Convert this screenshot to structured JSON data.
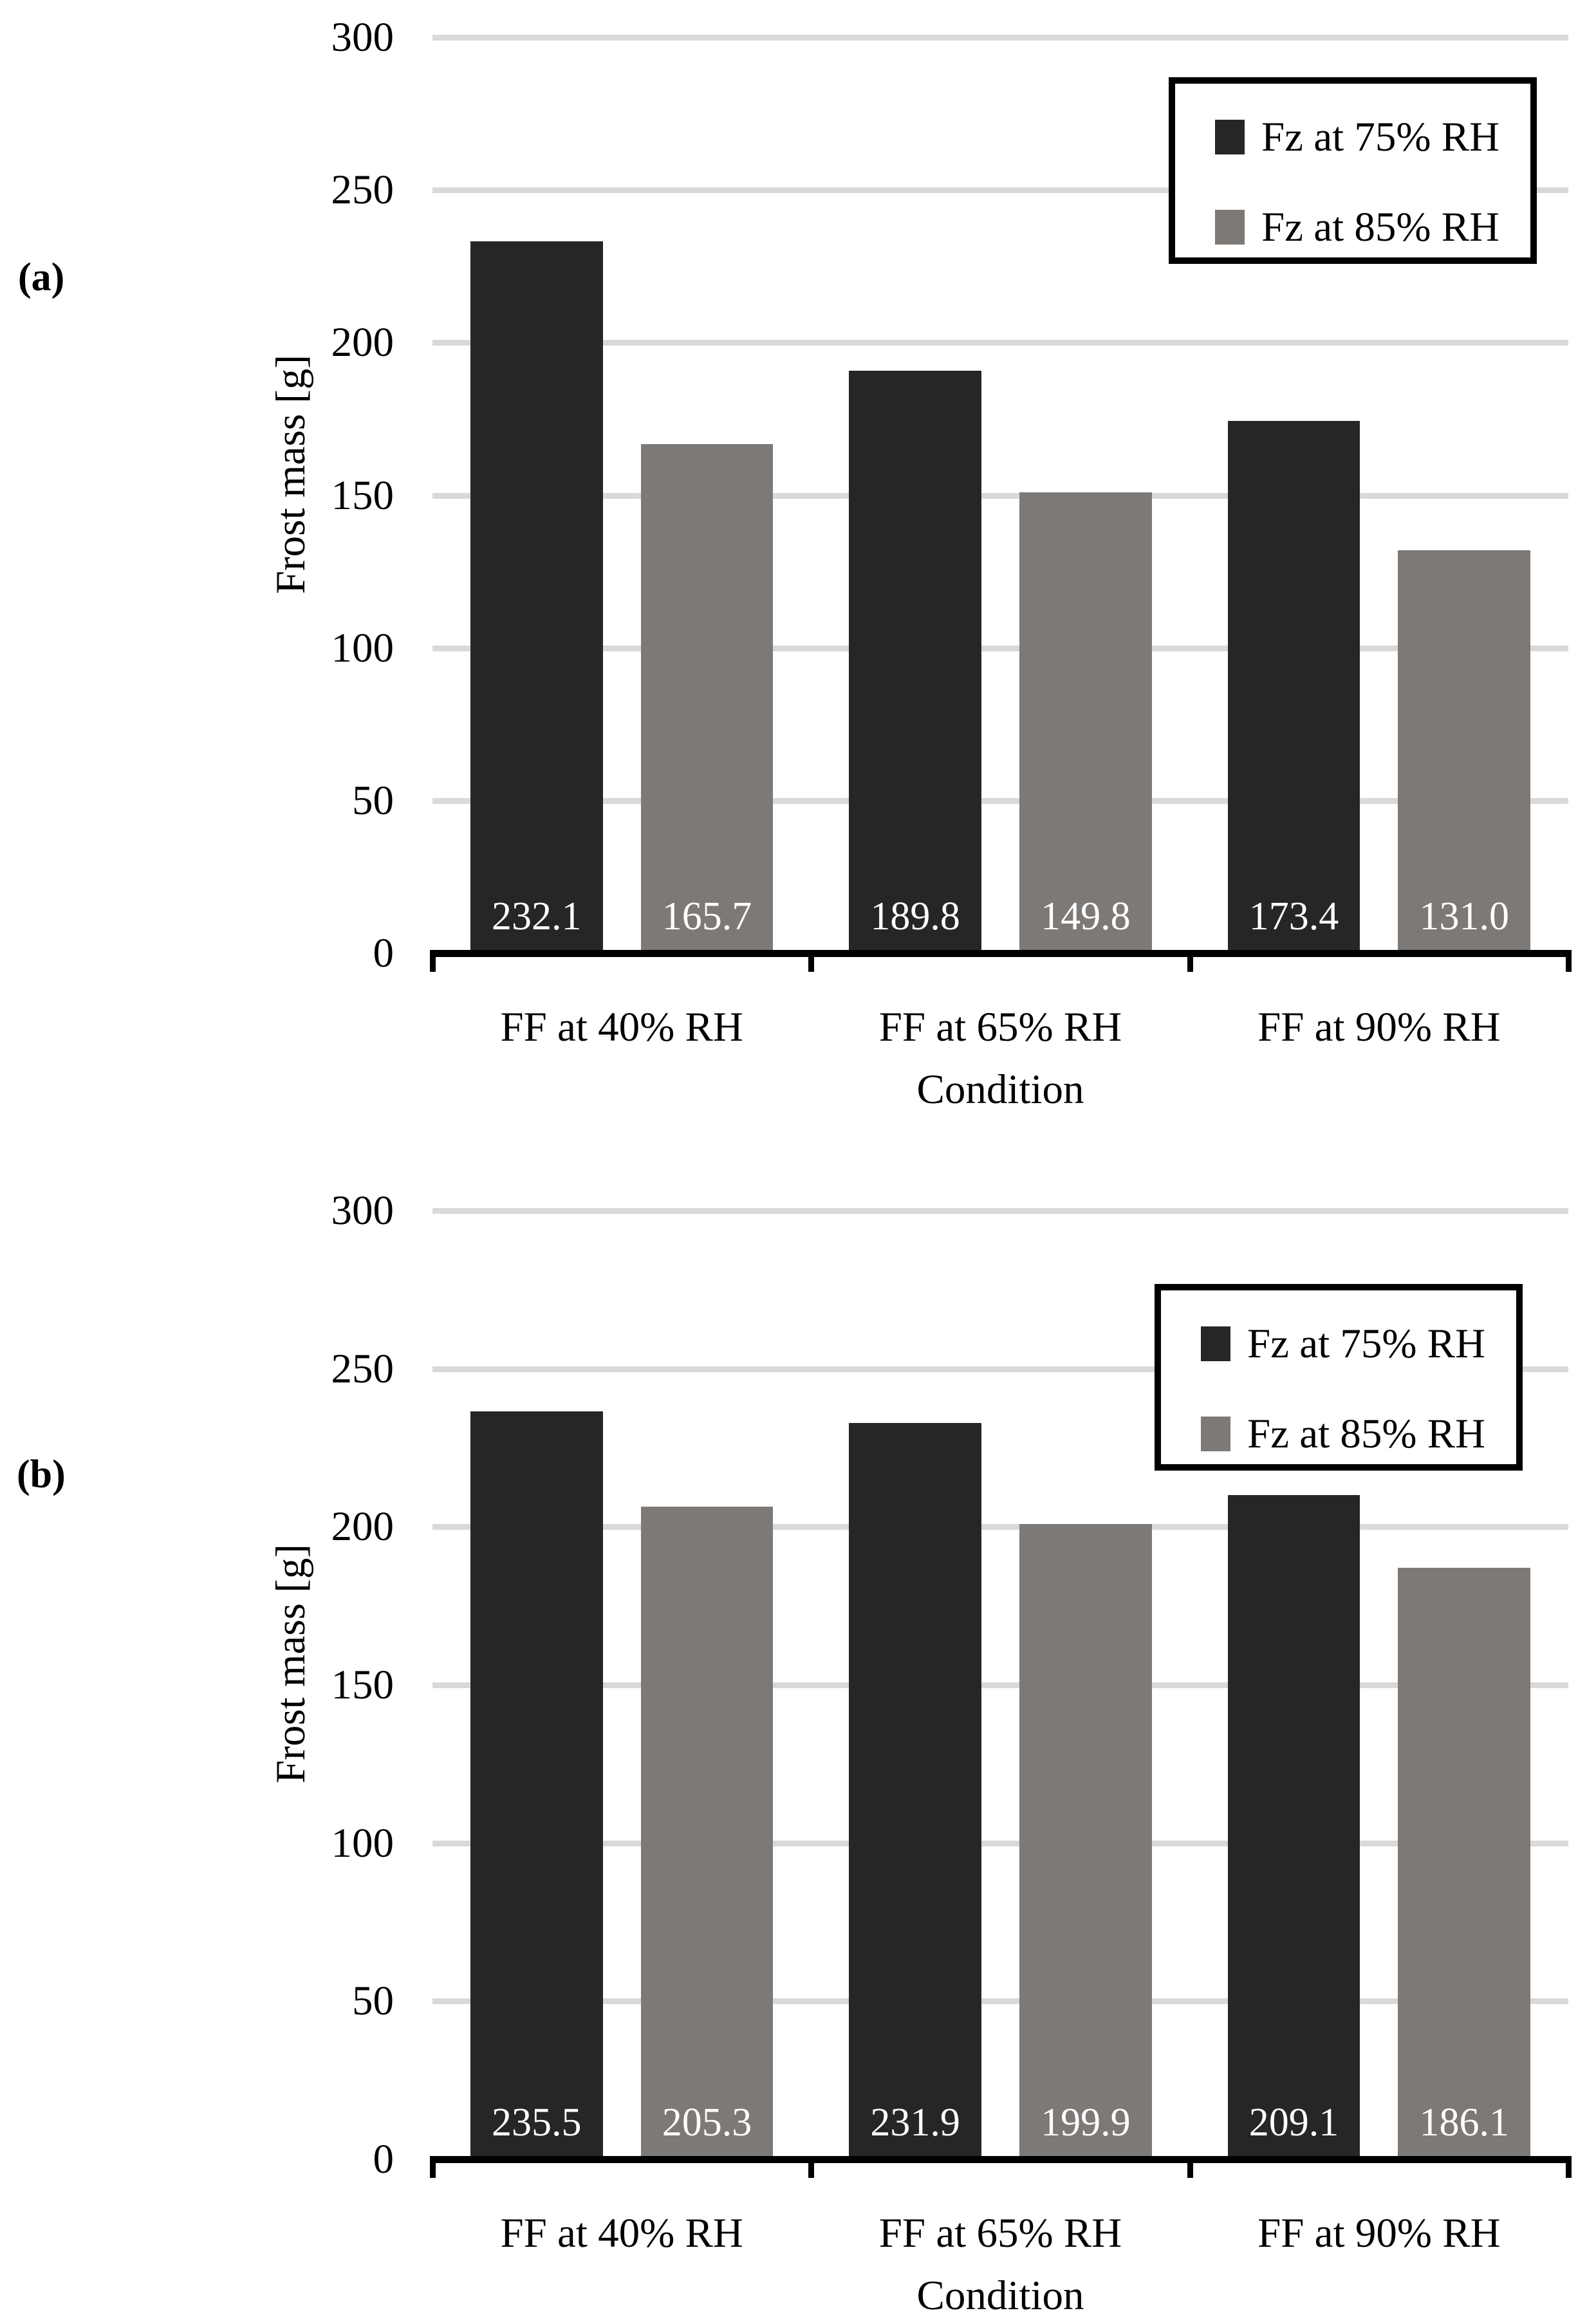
{
  "figure": {
    "background_color": "#ffffff",
    "gridline_color": "#d9d9d9",
    "axis_color": "#000000",
    "bar_label_color": "#ffffff"
  },
  "chart_data": [
    {
      "type": "bar",
      "panel_label": "(a)",
      "title": "",
      "xlabel": "Condition",
      "ylabel": "Frost mass [g]",
      "ylim": [
        0,
        300
      ],
      "ytick_step": 50,
      "yticks": [
        300,
        250,
        200,
        150,
        100,
        50,
        0
      ],
      "grid": true,
      "legend_position": "top-right",
      "categories": [
        "FF at 40% RH",
        "FF at 65% RH",
        "FF at 90% RH"
      ],
      "series": [
        {
          "name": "Fz at 75% RH",
          "color": "#262626",
          "values": [
            232.1,
            189.8,
            173.4
          ],
          "value_labels": [
            "232.1",
            "189.8",
            "173.4"
          ]
        },
        {
          "name": "Fz at 85% RH",
          "color": "#7d7977",
          "values": [
            165.7,
            149.8,
            131.0
          ],
          "value_labels": [
            "165.7",
            "149.8",
            "131.0"
          ]
        }
      ]
    },
    {
      "type": "bar",
      "panel_label": "(b)",
      "title": "",
      "xlabel": "Condition",
      "ylabel": "Frost mass [g]",
      "ylim": [
        0,
        300
      ],
      "ytick_step": 50,
      "yticks": [
        300,
        250,
        200,
        150,
        100,
        50,
        0
      ],
      "grid": true,
      "legend_position": "top-right",
      "categories": [
        "FF at 40% RH",
        "FF at 65% RH",
        "FF at 90% RH"
      ],
      "series": [
        {
          "name": "Fz at 75% RH",
          "color": "#262626",
          "values": [
            235.5,
            231.9,
            209.1
          ],
          "value_labels": [
            "235.5",
            "231.9",
            "209.1"
          ]
        },
        {
          "name": "Fz at 85% RH",
          "color": "#7d7977",
          "values": [
            205.3,
            199.9,
            186.1
          ],
          "value_labels": [
            "205.3",
            "199.9",
            "186.1"
          ]
        }
      ]
    }
  ]
}
